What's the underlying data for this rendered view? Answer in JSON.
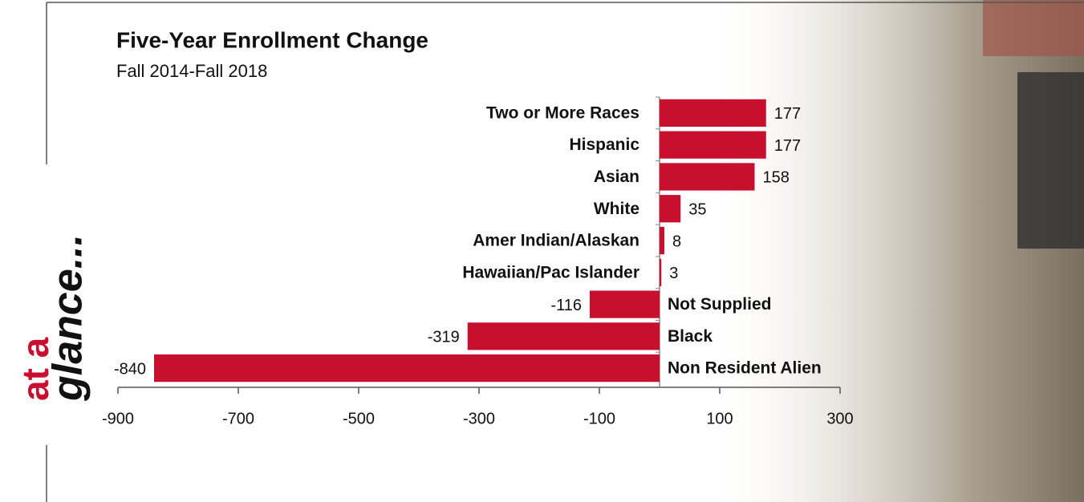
{
  "chart_data": {
    "type": "barh",
    "title": "Five-Year Enrollment Change",
    "subtitle": "Fall 2014-Fall 2018",
    "annotations": [
      "at a",
      "glance..."
    ],
    "categories": [
      "Two or More Races",
      "Hispanic",
      "Asian",
      "White",
      "Amer Indian/Alaskan",
      "Hawaiian/Pac Islander",
      "Not Supplied",
      "Black",
      "Non Resident Alien"
    ],
    "values": [
      177,
      177,
      158,
      35,
      8,
      3,
      -116,
      -319,
      -840
    ],
    "color": "#c8102e",
    "xlim": [
      -900,
      300
    ],
    "xticks": [
      -900,
      -700,
      -500,
      -300,
      -100,
      100,
      300
    ],
    "grid": false
  }
}
